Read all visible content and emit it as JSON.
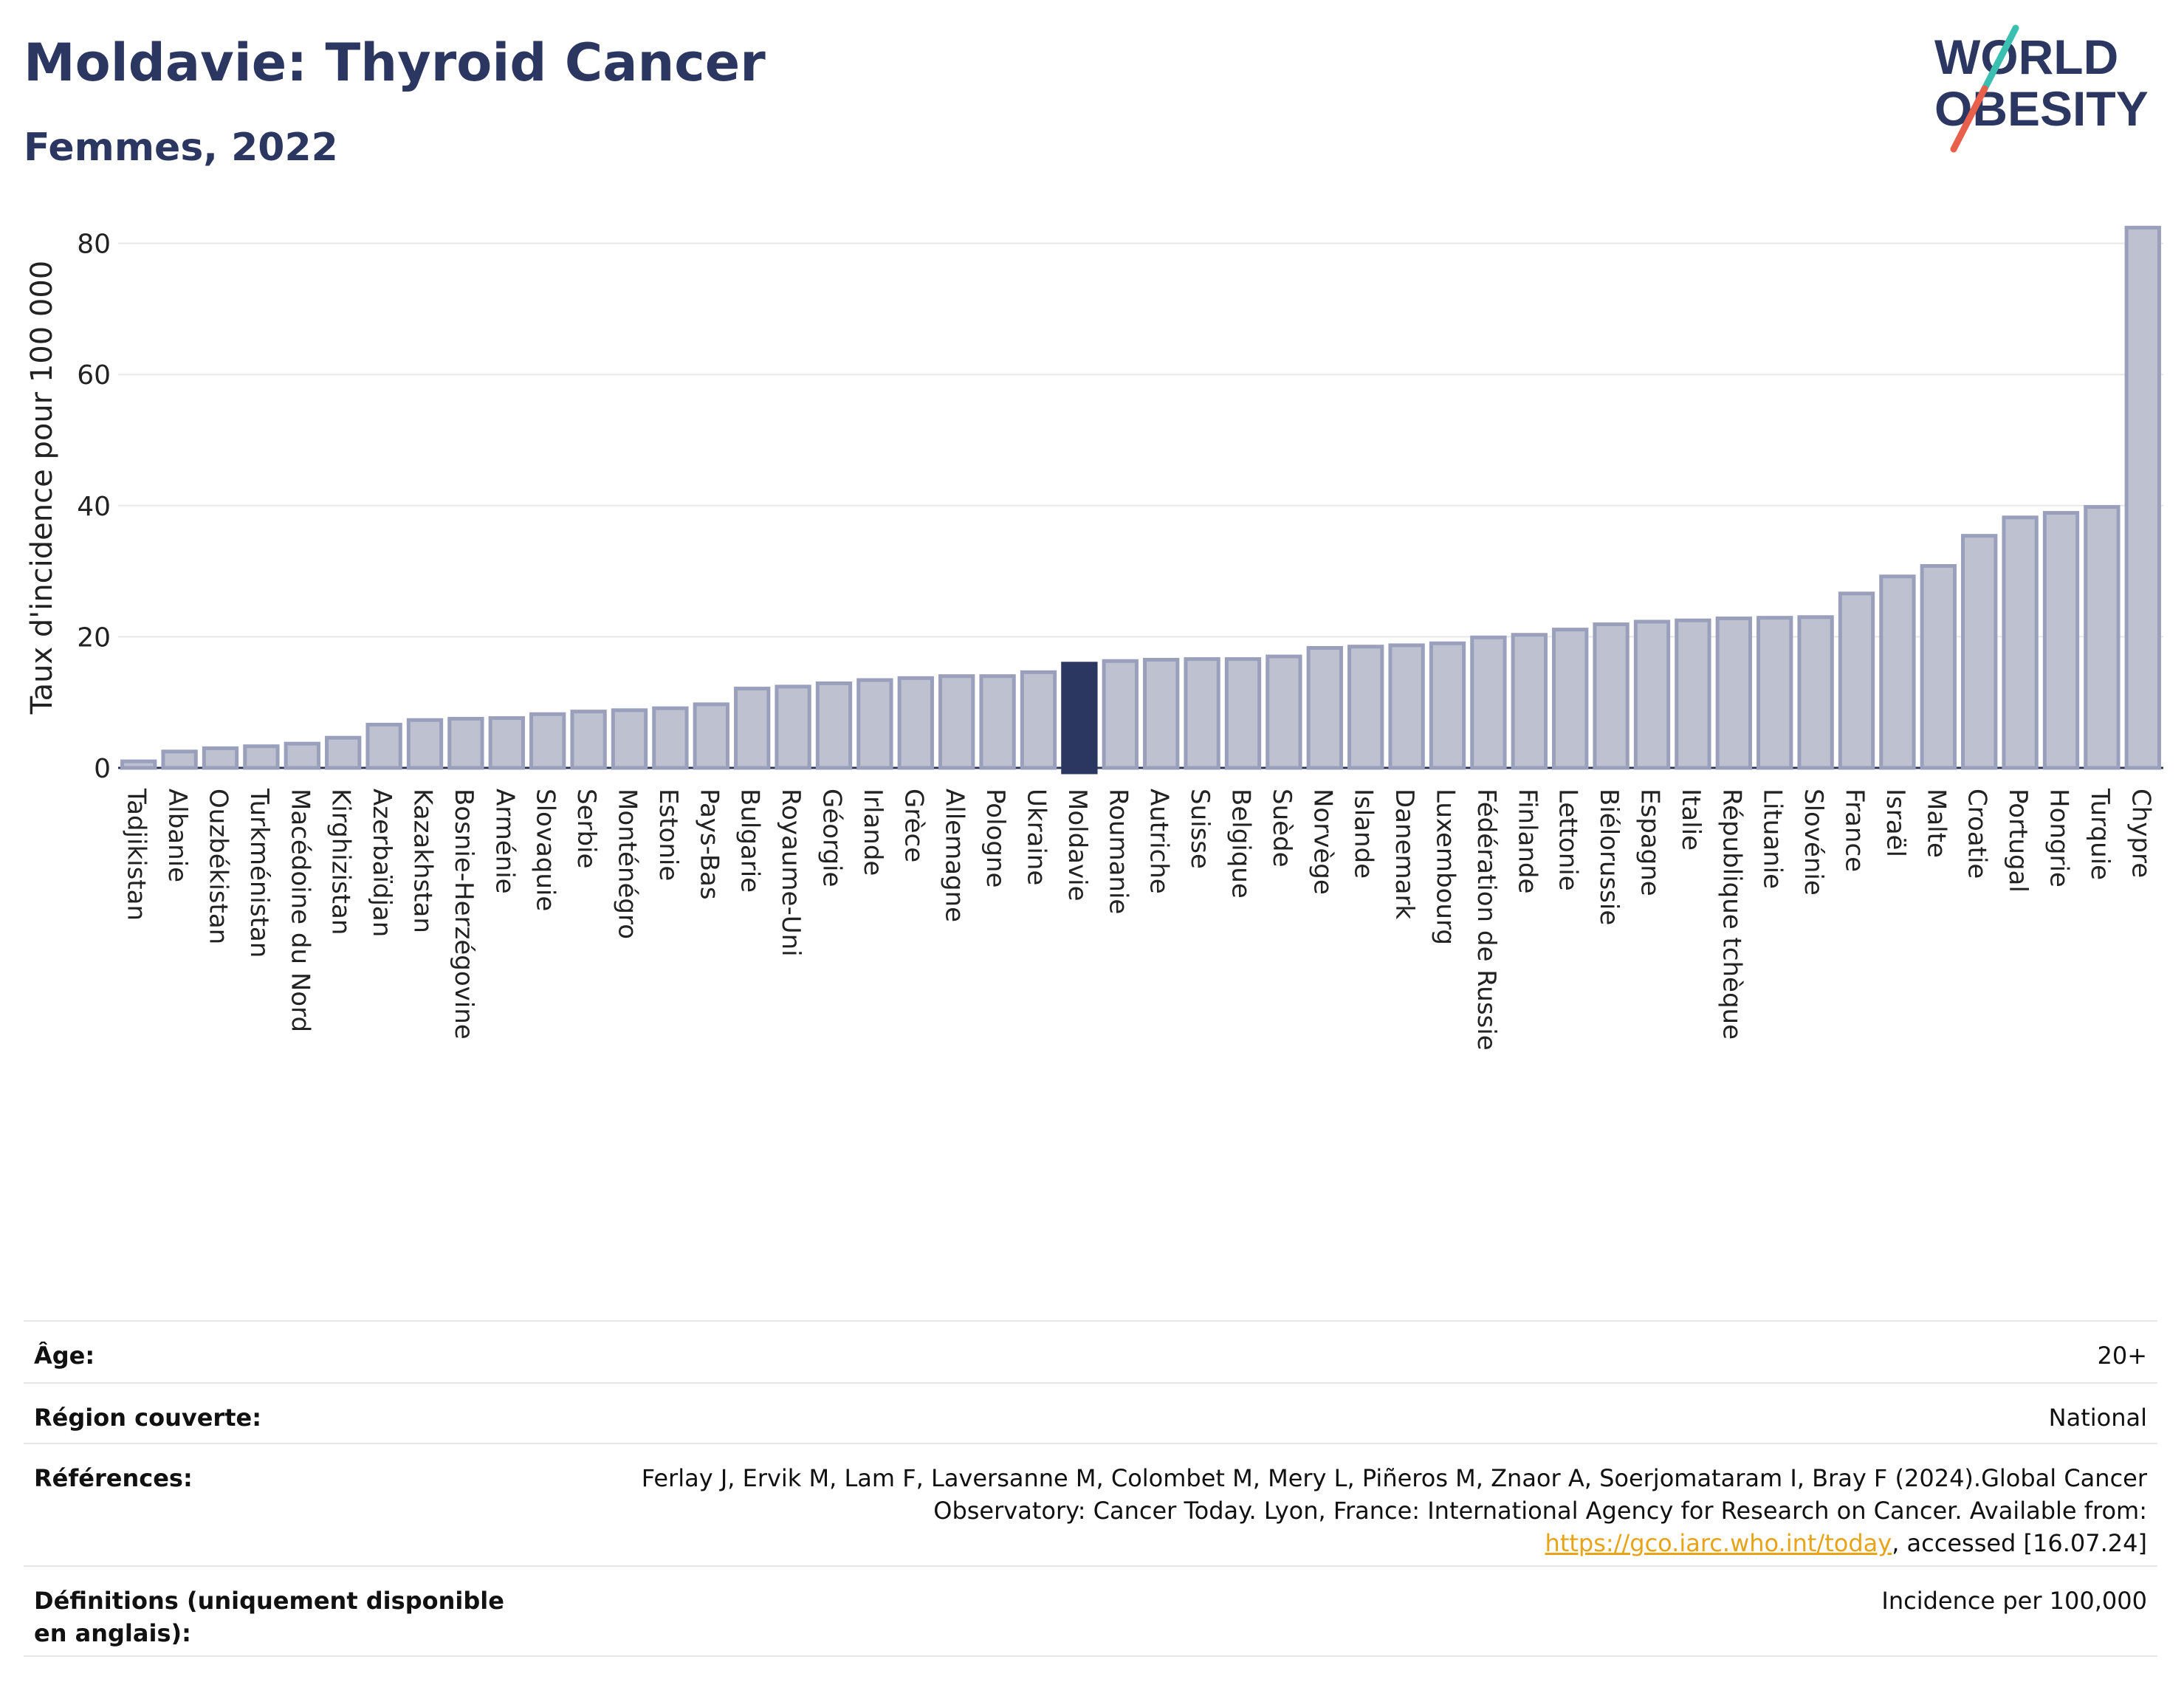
{
  "header": {
    "title": "Moldavie: Thyroid Cancer",
    "subtitle": "Femmes, 2022"
  },
  "logo": {
    "line1": "WORLD",
    "line2": "OBESITY",
    "colors": {
      "text": "#2c3761",
      "slash_teal": "#3bbfb0",
      "slash_red": "#e8604c"
    }
  },
  "colors": {
    "bar": "#bdc1d0",
    "bar_stroke": "#9aa0bb",
    "highlight": "#2c3761",
    "grid": "#e8e8e8"
  },
  "chart_data": {
    "type": "bar",
    "ylabel": "Taux d'incidence pour 100 000",
    "ylim": [
      0,
      85
    ],
    "yticks": [
      0,
      20,
      40,
      60,
      80
    ],
    "highlight": "Moldavie",
    "categories": [
      "Tadjikistan",
      "Albanie",
      "Ouzbékistan",
      "Turkménistan",
      "Macédoine du Nord",
      "Kirghizistan",
      "Azerbaïdjan",
      "Kazakhstan",
      "Bosnie-Herzégovine",
      "Arménie",
      "Slovaquie",
      "Serbie",
      "Monténégro",
      "Estonie",
      "Pays-Bas",
      "Bulgarie",
      "Royaume-Uni",
      "Géorgie",
      "Irlande",
      "Grèce",
      "Allemagne",
      "Pologne",
      "Ukraine",
      "Moldavie",
      "Roumanie",
      "Autriche",
      "Suisse",
      "Belgique",
      "Suède",
      "Norvège",
      "Islande",
      "Danemark",
      "Luxembourg",
      "Fédération de Russie",
      "Finlande",
      "Lettonie",
      "Biélorussie",
      "Espagne",
      "Italie",
      "République tchèque",
      "Lituanie",
      "Slovénie",
      "France",
      "Israël",
      "Malte",
      "Croatie",
      "Portugal",
      "Hongrie",
      "Turquie",
      "Chypre"
    ],
    "values": [
      1.0,
      2.5,
      3.0,
      3.3,
      3.7,
      4.6,
      6.6,
      7.3,
      7.5,
      7.6,
      8.2,
      8.6,
      8.8,
      9.1,
      9.7,
      12.1,
      12.4,
      12.9,
      13.4,
      13.7,
      14.0,
      14.0,
      14.6,
      15.9,
      16.3,
      16.5,
      16.6,
      16.6,
      17.0,
      18.3,
      18.5,
      18.7,
      19.0,
      19.9,
      20.3,
      21.1,
      21.9,
      22.3,
      22.5,
      22.8,
      22.9,
      23.0,
      26.6,
      29.2,
      30.8,
      35.4,
      38.2,
      38.9,
      39.8,
      82.4
    ]
  },
  "meta": {
    "age_label": "Âge:",
    "age_value": "20+",
    "region_label": "Région couverte:",
    "region_value": "National",
    "refs_label": "Références:",
    "refs_text_1": "Ferlay J, Ervik M, Lam F, Laversanne M, Colombet M, Mery L, Piñeros M, Znaor A, Soerjomataram I, Bray F (2024).Global Cancer Observatory: Cancer Today. Lyon, France: International Agency for Research on Cancer. Available from: ",
    "refs_link": "https://gco.iarc.who.int/today",
    "refs_text_2": ", accessed [16.07.24]",
    "defs_label": "Définitions (uniquement disponible en anglais):",
    "defs_value": "Incidence per 100,000"
  }
}
